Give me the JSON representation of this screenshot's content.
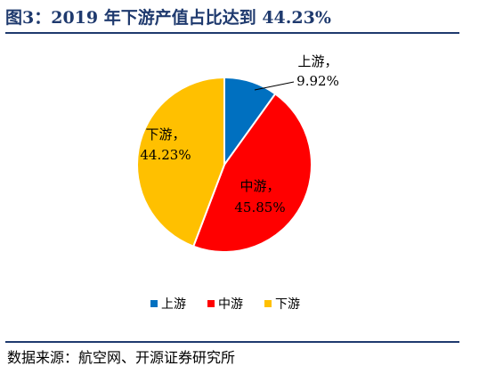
{
  "figure": {
    "title": "图3：2019 年下游产值占比达到 44.23%",
    "source": "数据来源：航空网、开源证券研究所"
  },
  "chart_data": {
    "type": "pie",
    "slices": [
      {
        "name": "上游",
        "value": 9.92,
        "label": "9.92%",
        "color": "#0070c0"
      },
      {
        "name": "中游",
        "value": 45.85,
        "label": "45.85%",
        "color": "#ff0000"
      },
      {
        "name": "下游",
        "value": 44.23,
        "label": "44.23%",
        "color": "#ffc000"
      }
    ],
    "legend_position": "bottom",
    "legend": [
      "上游",
      "中游",
      "下游"
    ]
  }
}
